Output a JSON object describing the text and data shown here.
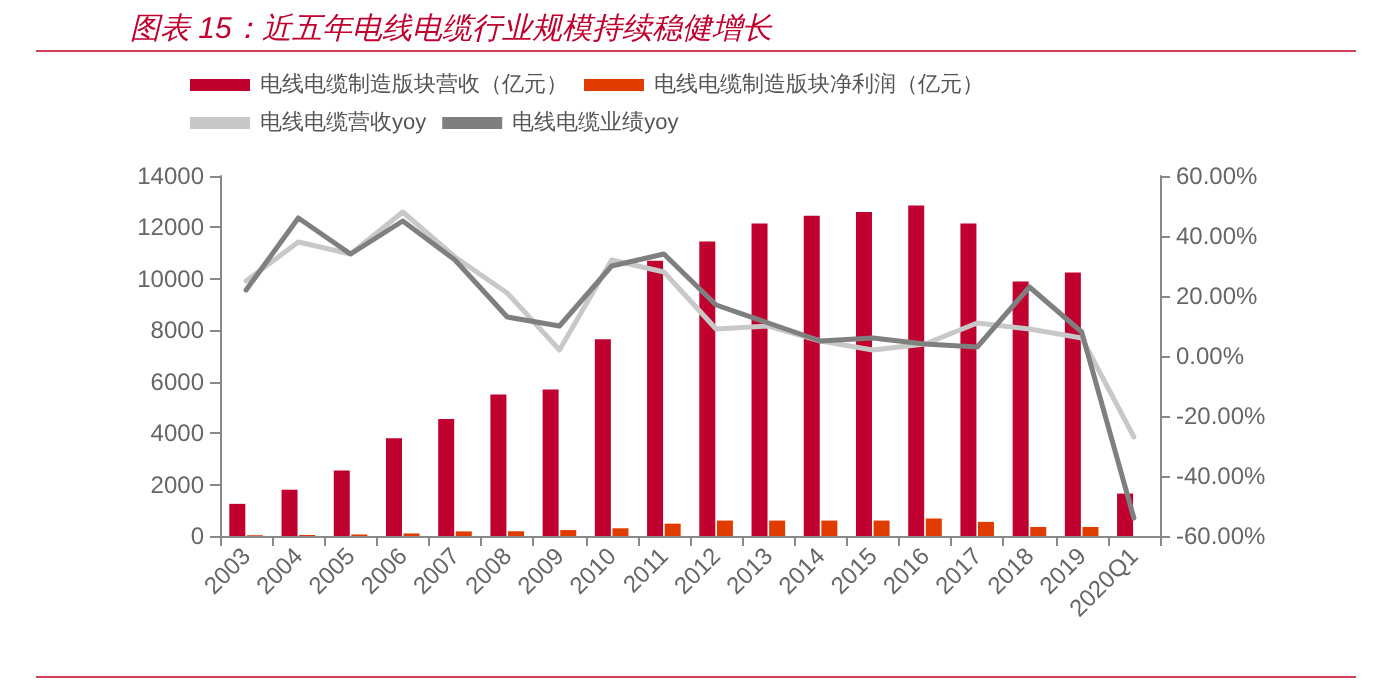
{
  "chart_data": {
    "type": "bar",
    "title": "图表 15：近五年电线电缆行业规模持续稳健增长",
    "categories": [
      "2003",
      "2004",
      "2005",
      "2006",
      "2007",
      "2008",
      "2009",
      "2010",
      "2011",
      "2012",
      "2013",
      "2014",
      "2015",
      "2016",
      "2017",
      "2018",
      "2019",
      "2020Q1"
    ],
    "series": [
      {
        "name": "电线电缆制造版块营收（亿元）",
        "color": "#c0002e",
        "values": [
          1250,
          1800,
          2550,
          3800,
          4550,
          5500,
          5700,
          7650,
          10700,
          11450,
          12150,
          12450,
          12600,
          12850,
          12150,
          9900,
          10250,
          1650
        ]
      },
      {
        "name": "电线电缆制造版块净利润（亿元）",
        "color": "#e03c00",
        "values": [
          30,
          40,
          60,
          100,
          180,
          180,
          230,
          300,
          480,
          600,
          600,
          600,
          600,
          680,
          550,
          350,
          350,
          null
        ]
      },
      {
        "name": "电线电缆营收yoy",
        "type": "line",
        "axis": "y2",
        "color": "#c8c8c8",
        "values": [
          25,
          38,
          34,
          48,
          33,
          21,
          2,
          32,
          28,
          9,
          10,
          5,
          2,
          4,
          11,
          9,
          6,
          -27
        ]
      },
      {
        "name": "电线电缆业绩yoy",
        "type": "line",
        "axis": "y2",
        "color": "#7f7f7f",
        "values": [
          22,
          46,
          34,
          45,
          32,
          13,
          10,
          30,
          34,
          17,
          11,
          5,
          6,
          4,
          3,
          23,
          8,
          -54
        ]
      }
    ],
    "ylim": [
      0,
      14000
    ],
    "yticks": [
      0,
      2000,
      4000,
      6000,
      8000,
      10000,
      12000,
      14000
    ],
    "y2lim": [
      -60,
      60
    ],
    "y2ticks": [
      {
        "value": -60,
        "label": "-60.00%"
      },
      {
        "value": -40,
        "label": "-40.00%"
      },
      {
        "value": -20,
        "label": "-20.00%"
      },
      {
        "value": 0,
        "label": "0.00%"
      },
      {
        "value": 20,
        "label": "20.00%"
      },
      {
        "value": 40,
        "label": "40.00%"
      },
      {
        "value": 60,
        "label": "60.00%"
      }
    ],
    "grid": false,
    "legend": "top",
    "marker": "none",
    "line_style": "solid"
  }
}
